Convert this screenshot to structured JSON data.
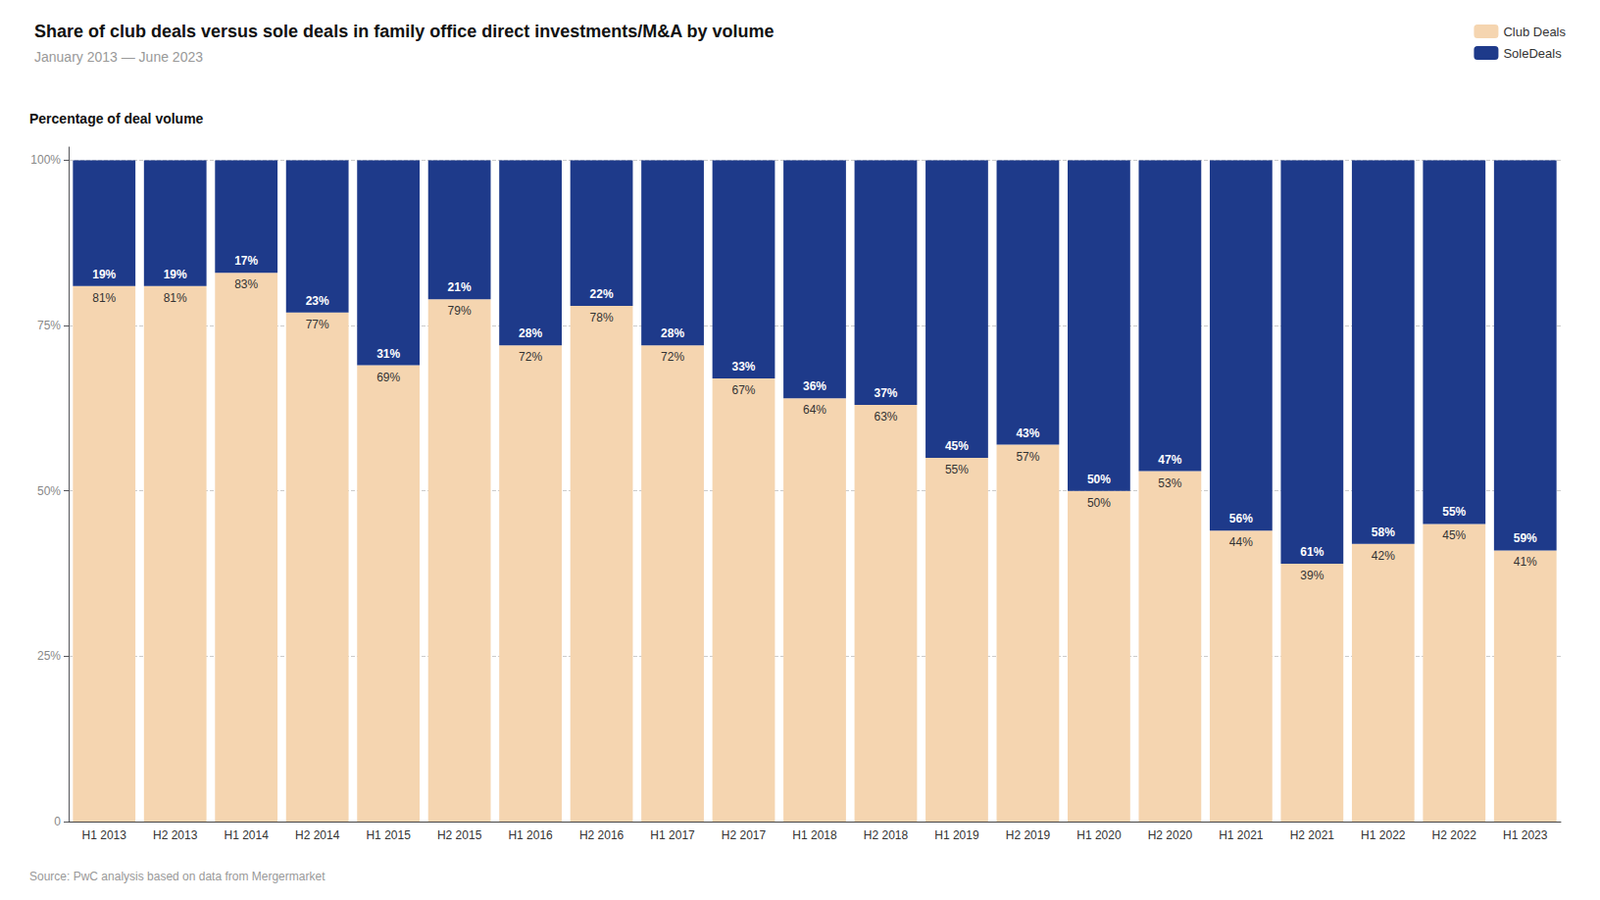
{
  "chart_data": {
    "type": "bar",
    "title": "Share of club deals versus sole deals in family office direct investments/M&A by volume",
    "subtitle": "January 2013 — June 2023",
    "ylabel": "Percentage of deal volume",
    "source": "Source: PwC analysis based on data from Mergermarket",
    "categories": [
      "H1 2013",
      "H2 2013",
      "H1 2014",
      "H2 2014",
      "H1 2015",
      "H2 2015",
      "H1 2016",
      "H2 2016",
      "H1 2017",
      "H2 2017",
      "H1 2018",
      "H2 2018",
      "H1 2019",
      "H2 2019",
      "H1 2020",
      "H2 2020",
      "H1 2021",
      "H2 2021",
      "H1 2022",
      "H2 2022",
      "H1 2023"
    ],
    "series": [
      {
        "name": "Club Deals",
        "color": "#f5d5b0",
        "values": [
          81,
          81,
          83,
          77,
          69,
          79,
          72,
          78,
          72,
          67,
          64,
          63,
          55,
          57,
          50,
          53,
          44,
          39,
          42,
          45,
          41
        ],
        "value_labels": [
          "81%",
          "81%",
          "83%",
          "77%",
          "69%",
          "79%",
          "72%",
          "78%",
          "72%",
          "67%",
          "64%",
          "63%",
          "55%",
          "57%",
          "50%",
          "53%",
          "44%",
          "39%",
          "42%",
          "45%",
          "41%"
        ]
      },
      {
        "name": "SoleDeals",
        "color": "#1e3a8a",
        "values": [
          19,
          19,
          17,
          23,
          31,
          21,
          28,
          22,
          28,
          33,
          36,
          37,
          45,
          43,
          50,
          47,
          56,
          61,
          58,
          55,
          59
        ],
        "value_labels": [
          "19%",
          "19%",
          "17%",
          "23%",
          "31%",
          "21%",
          "28%",
          "22%",
          "28%",
          "33%",
          "36%",
          "37%",
          "45%",
          "43%",
          "50%",
          "47%",
          "56%",
          "61%",
          "58%",
          "55%",
          "59%"
        ]
      }
    ],
    "stacked": true,
    "data_labels": true,
    "ylim": [
      0,
      102
    ],
    "yticks": [
      0,
      {
        "value": 25,
        "label": "25%"
      },
      {
        "value": 50,
        "label": "50%"
      },
      {
        "value": 75,
        "label": "75%"
      },
      {
        "value": 100,
        "label": "100%"
      }
    ],
    "grid": true,
    "legend": "upper right"
  }
}
